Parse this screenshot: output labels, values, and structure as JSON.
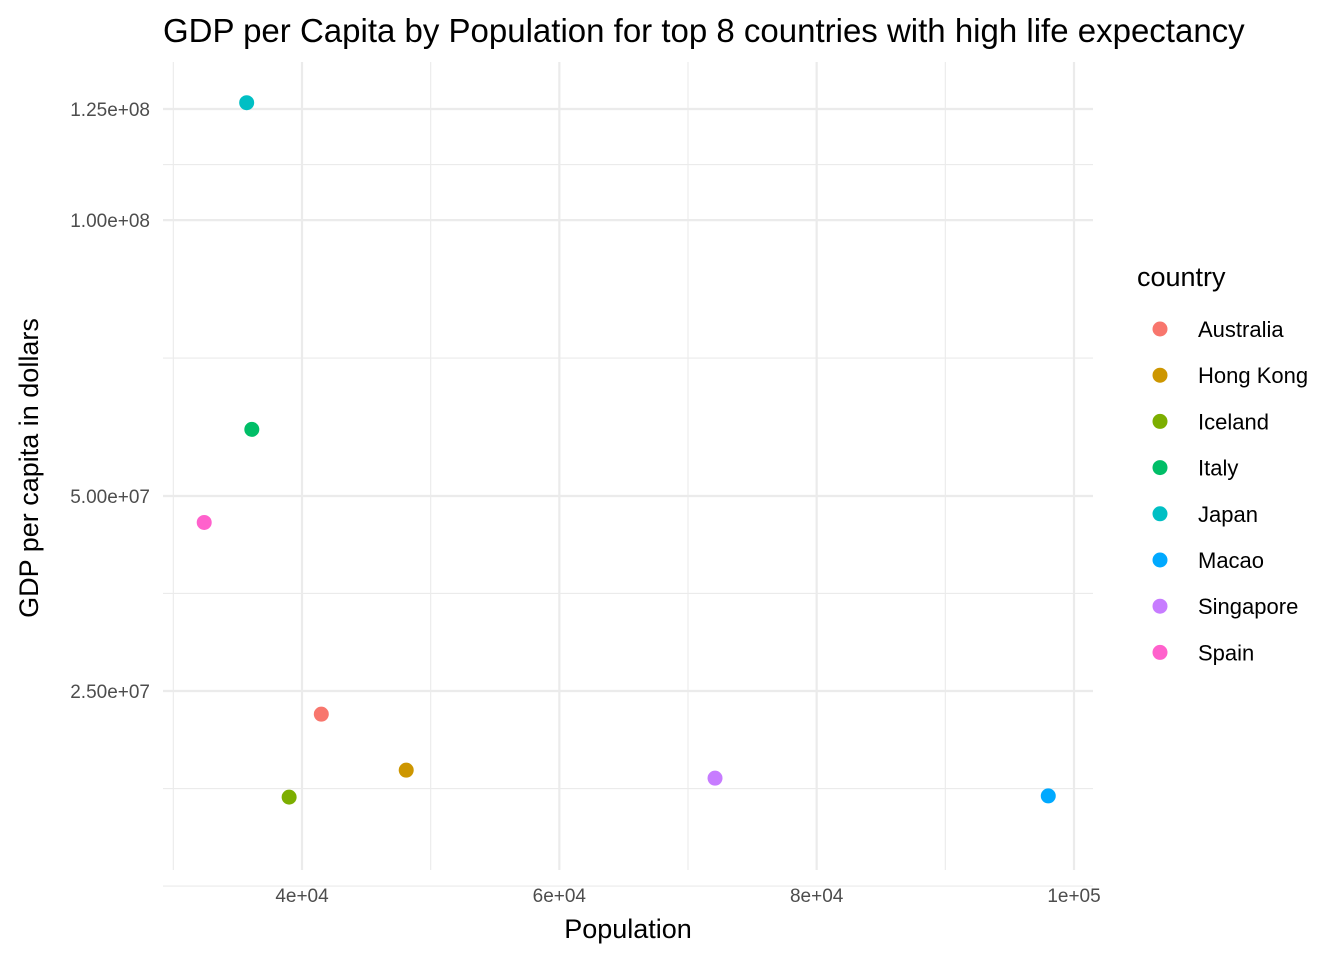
{
  "chart_data": {
    "type": "scatter",
    "title": "GDP per Capita by Population for top 8 countries with high life expectancy",
    "xlabel": "Population",
    "ylabel": "GDP per capita in dollars",
    "xlim": [
      30000,
      102000
    ],
    "ylim": [
      10000000,
      130000000
    ],
    "x_ticks": [
      {
        "value": 40000,
        "label": "4e+04"
      },
      {
        "value": 60000,
        "label": "6e+04"
      },
      {
        "value": 80000,
        "label": "8e+04"
      },
      {
        "value": 100000,
        "label": "1e+05"
      }
    ],
    "y_ticks": [
      {
        "value": 25000000,
        "label": "2.50e+07"
      },
      {
        "value": 50000000,
        "label": "5.00e+07"
      },
      {
        "value": 100000000,
        "label": "1.00e+08"
      },
      {
        "value": 125000000,
        "label": "1.25e+08"
      }
    ],
    "grid": true,
    "legend": {
      "title": "country",
      "position": "right"
    },
    "series": [
      {
        "name": "Australia",
        "color": "#F8766D",
        "points": [
          {
            "x": 41500,
            "y": 22600000
          }
        ]
      },
      {
        "name": "Hong Kong",
        "color": "#CD9600",
        "points": [
          {
            "x": 48100,
            "y": 17300000
          }
        ]
      },
      {
        "name": "Iceland",
        "color": "#7CAE00",
        "points": [
          {
            "x": 39000,
            "y": 15000000
          }
        ]
      },
      {
        "name": "Italy",
        "color": "#00BE67",
        "points": [
          {
            "x": 36100,
            "y": 60500000
          }
        ]
      },
      {
        "name": "Japan",
        "color": "#00BFC4",
        "points": [
          {
            "x": 35700,
            "y": 126500000
          }
        ]
      },
      {
        "name": "Macao",
        "color": "#00A9FF",
        "points": [
          {
            "x": 98000,
            "y": 15100000
          }
        ]
      },
      {
        "name": "Singapore",
        "color": "#C77CFF",
        "points": [
          {
            "x": 72100,
            "y": 16600000
          }
        ]
      },
      {
        "name": "Spain",
        "color": "#FF61CC",
        "points": [
          {
            "x": 32400,
            "y": 46100000
          }
        ]
      }
    ]
  }
}
